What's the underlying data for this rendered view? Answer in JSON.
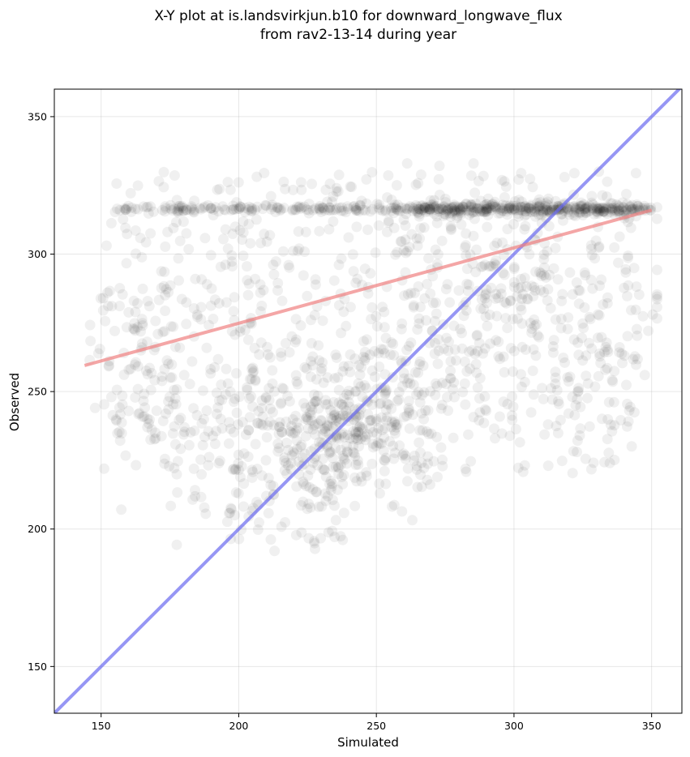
{
  "chart_data": {
    "type": "scatter",
    "title_lines": [
      "X-Y plot at is.landsvirkjun.b10 for downward_longwave_flux",
      "from rav2-13-14 during year"
    ],
    "xlabel": "Simulated",
    "ylabel": "Observed",
    "xlim": [
      133,
      361
    ],
    "ylim": [
      133,
      360
    ],
    "xticks": [
      150,
      200,
      250,
      300,
      350
    ],
    "yticks": [
      150,
      200,
      250,
      300,
      350
    ],
    "grid": true,
    "colors": {
      "points": "#000000",
      "fit_line": "#f08080",
      "one_to_one_line": "#6a6af0"
    },
    "lines": [
      {
        "role": "one-to-one",
        "x": [
          133,
          361
        ],
        "y": [
          133,
          361
        ]
      },
      {
        "role": "fit",
        "x": [
          144,
          350
        ],
        "y": [
          259.5,
          316
        ]
      }
    ],
    "scatter_clusters": [
      {
        "count": 300,
        "x_range": [
          155,
          350
        ],
        "y_center": 316.5,
        "y_spread": 0.7
      },
      {
        "count": 240,
        "x_range": [
          265,
          345
        ],
        "y_center": 316.5,
        "y_spread": 1.5
      },
      {
        "count": 700,
        "x_range": [
          150,
          345
        ],
        "y_range": [
          220,
          330
        ]
      },
      {
        "count": 300,
        "x_center": 240,
        "x_spread": 16,
        "y_center": 238,
        "y_spread": 14
      },
      {
        "count": 250,
        "x_center": 300,
        "x_spread": 25,
        "y_center": 280,
        "y_spread": 22
      },
      {
        "count": 140,
        "x_center": 205,
        "x_spread": 22,
        "y_center": 235,
        "y_spread": 15
      },
      {
        "count": 60,
        "x_range": [
          195,
          240
        ],
        "y_range": [
          192,
          222
        ]
      },
      {
        "count": 40,
        "x_range": [
          145,
          180
        ],
        "y_range": [
          240,
          290
        ]
      }
    ]
  }
}
